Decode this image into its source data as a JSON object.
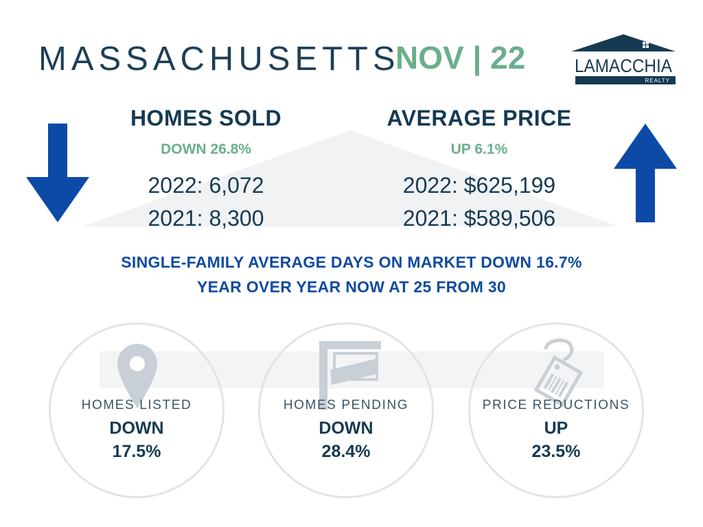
{
  "header": {
    "state": "MASSACHUSETTS",
    "period": "NOV | 22"
  },
  "logo": {
    "name": "LAMACCHIA",
    "sub": "REALTY"
  },
  "homes_sold": {
    "heading": "HOMES SOLD",
    "change": "DOWN 26.8%",
    "line_2022": "2022: 6,072",
    "line_2021": "2021: 8,300",
    "trend": "down"
  },
  "average_price": {
    "heading": "AVERAGE PRICE",
    "change": "UP 6.1%",
    "line_2022": "2022: $625,199",
    "line_2021": "2021: $589,506",
    "trend": "up"
  },
  "days_on_market": {
    "line1": "SINGLE-FAMILY AVERAGE DAYS ON MARKET DOWN  16.7%",
    "line2": "YEAR OVER YEAR NOW AT 25 FROM 30"
  },
  "circles": [
    {
      "icon": "location-pin-icon",
      "label": "HOMES LISTED",
      "direction": "DOWN",
      "percent": "17.5%"
    },
    {
      "icon": "for-sale-sign-icon",
      "label": "HOMES PENDING",
      "direction": "DOWN",
      "percent": "28.4%"
    },
    {
      "icon": "price-tag-icon",
      "label": "PRICE REDUCTIONS",
      "direction": "UP",
      "percent": "23.5%"
    }
  ],
  "colors": {
    "navy": "#153a52",
    "green": "#6aaf8c",
    "blue": "#0f4ba0",
    "arrow_blue": "#0d4aa8",
    "circle_border": "#e1e4e8",
    "icon_gray": "#c9cfd6"
  }
}
